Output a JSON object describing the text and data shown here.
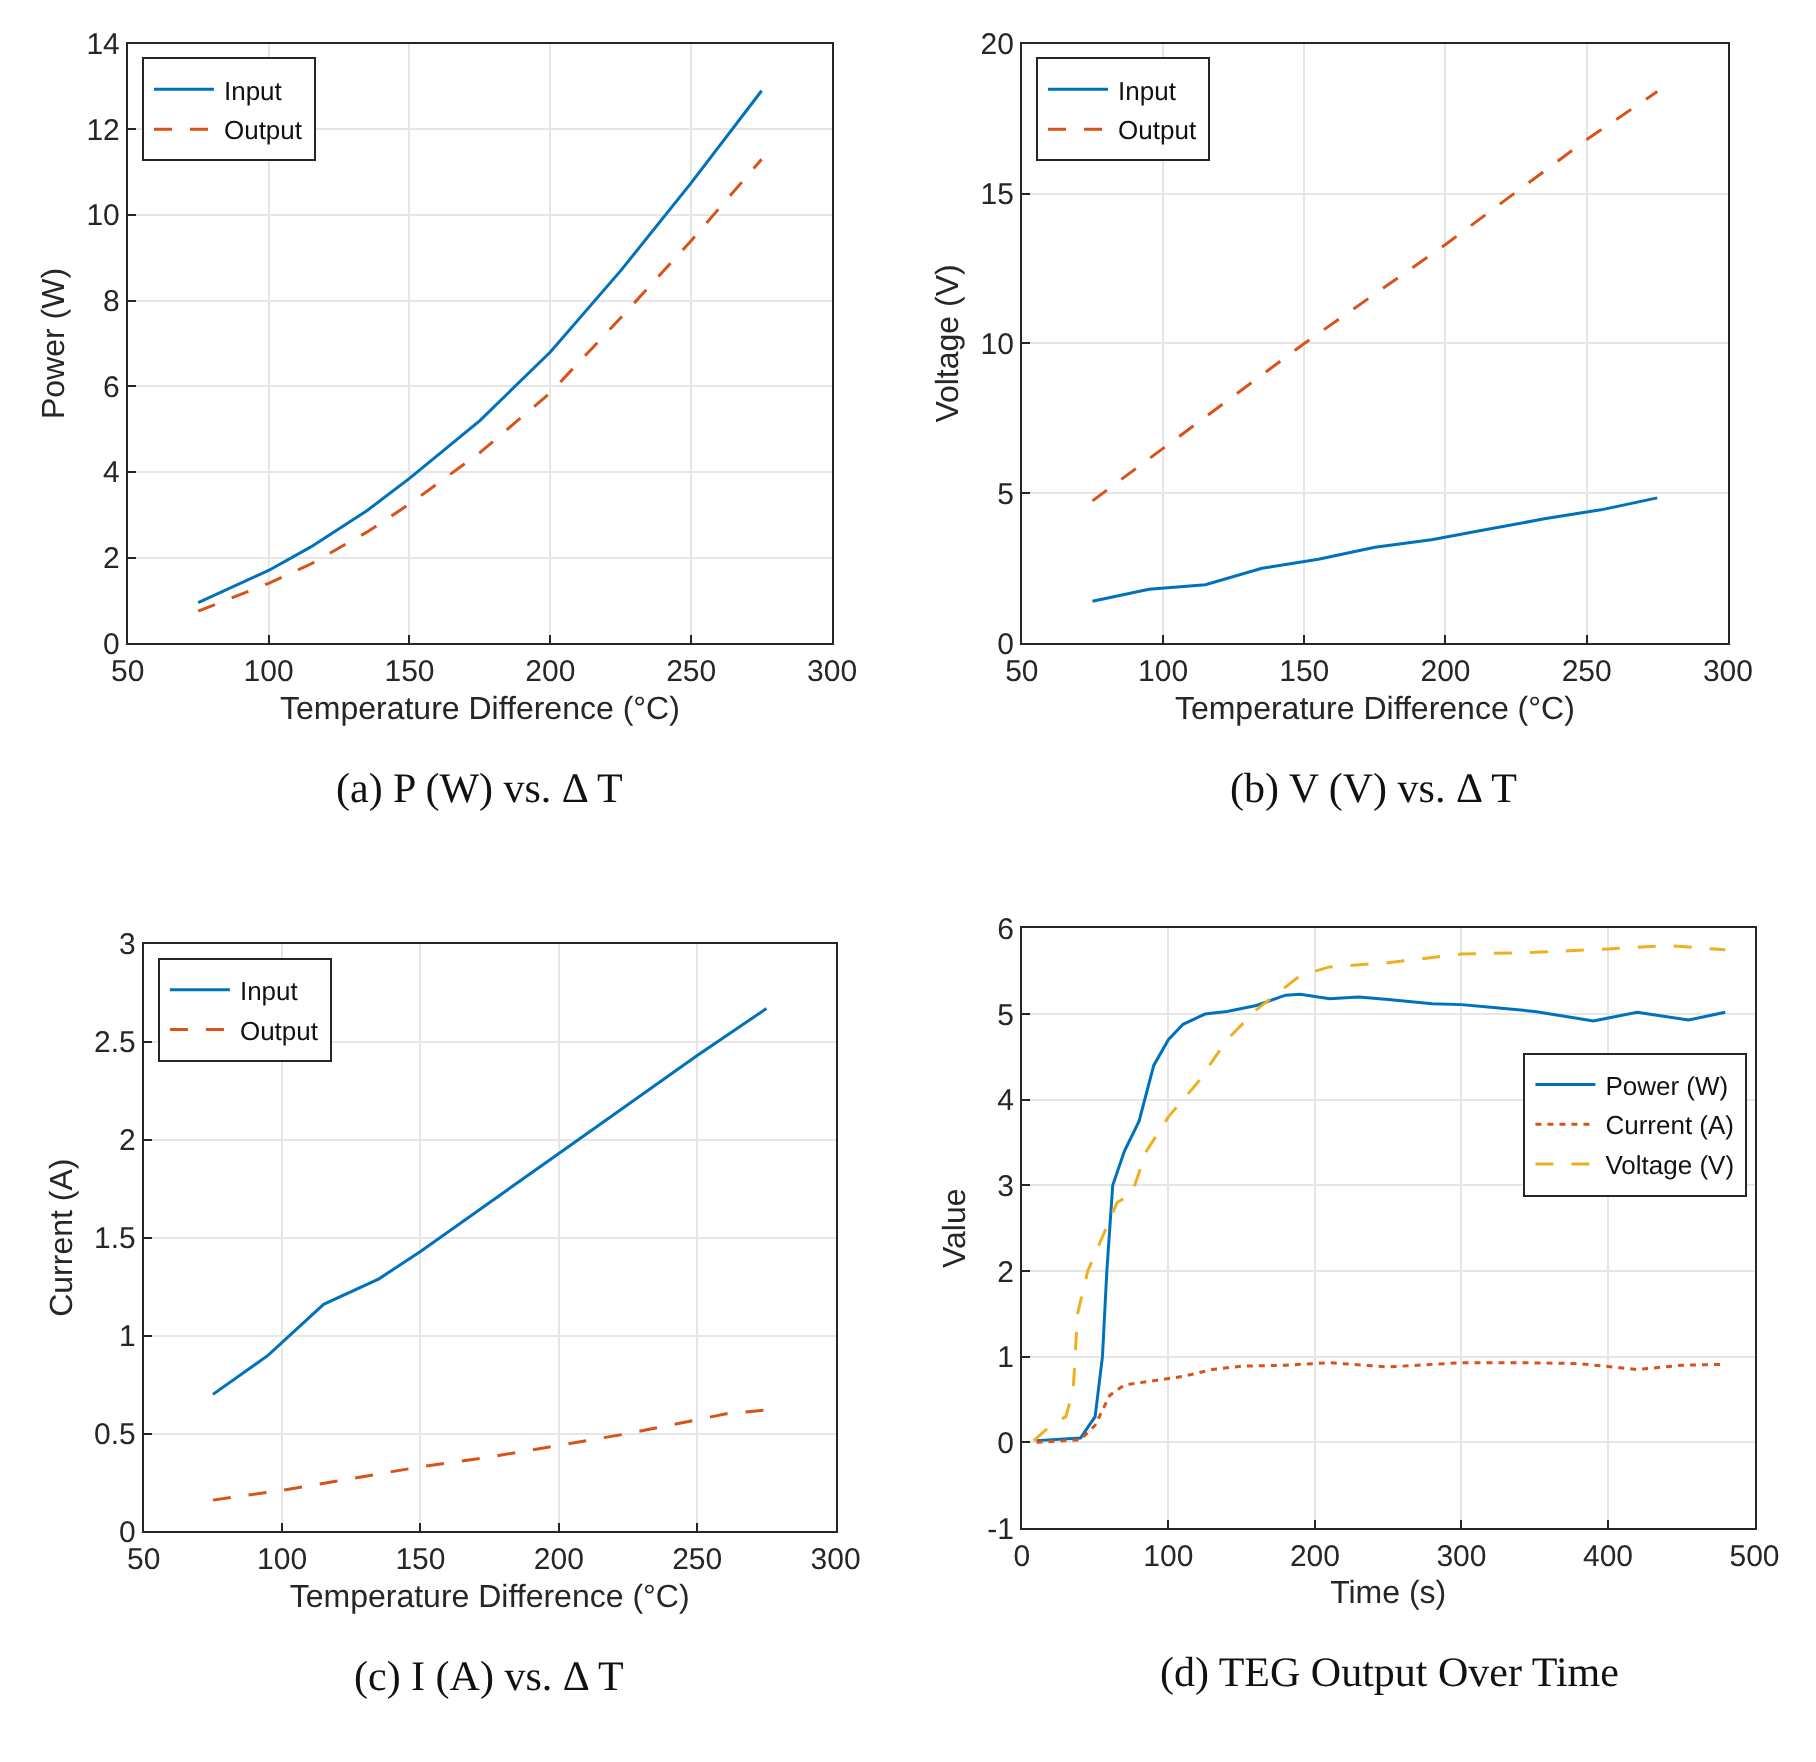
{
  "chart_data": [
    {
      "type": "line",
      "title": "(a) P (W) vs. Δ T",
      "xlabel": "Temperature Difference (°C)",
      "ylabel": "Power (W)",
      "xlim": [
        50,
        300
      ],
      "xticks": [
        50,
        100,
        150,
        200,
        250,
        300
      ],
      "ylim": [
        0,
        14
      ],
      "yticks": [
        0,
        2,
        4,
        6,
        8,
        10,
        12,
        14
      ],
      "grid": true,
      "legend": "top left",
      "series": [
        {
          "name": "Input",
          "color": "#0072bd",
          "line_style": "solid",
          "x": [
            75,
            100,
            115,
            135,
            150,
            175,
            200,
            225,
            250,
            275
          ],
          "values": [
            0.95,
            1.7,
            2.25,
            3.1,
            3.85,
            5.2,
            6.8,
            8.7,
            10.75,
            12.9
          ]
        },
        {
          "name": "Output",
          "color": "#d95319",
          "line_style": "dashed",
          "x": [
            75,
            100,
            115,
            135,
            150,
            175,
            200,
            225,
            250,
            275
          ],
          "values": [
            0.75,
            1.4,
            1.85,
            2.6,
            3.25,
            4.45,
            5.85,
            7.6,
            9.4,
            11.3
          ]
        }
      ]
    },
    {
      "type": "line",
      "title": "(b) V (V) vs. Δ T",
      "xlabel": "Temperature Difference (°C)",
      "ylabel": "Voltage (V)",
      "xlim": [
        50,
        300
      ],
      "xticks": [
        50,
        100,
        150,
        200,
        250,
        300
      ],
      "ylim": [
        0,
        20
      ],
      "yticks": [
        0,
        5,
        10,
        15,
        20
      ],
      "grid": true,
      "legend": "top left",
      "series": [
        {
          "name": "Input",
          "color": "#0072bd",
          "line_style": "solid",
          "x": [
            75,
            95,
            115,
            135,
            155,
            175,
            195,
            215,
            235,
            255,
            275
          ],
          "values": [
            1.4,
            1.8,
            1.95,
            2.5,
            2.8,
            3.2,
            3.45,
            3.8,
            4.15,
            4.45,
            4.85
          ]
        },
        {
          "name": "Output",
          "color": "#d95319",
          "line_style": "dashed",
          "x": [
            75,
            100,
            150,
            200,
            250,
            275
          ],
          "values": [
            4.75,
            6.5,
            10.0,
            13.3,
            16.8,
            18.4
          ]
        }
      ]
    },
    {
      "type": "line",
      "title": "(c) I (A) vs. Δ T",
      "xlabel": "Temperature Difference (°C)",
      "ylabel": "Current (A)",
      "xlim": [
        50,
        300
      ],
      "xticks": [
        50,
        100,
        150,
        200,
        250,
        300
      ],
      "ylim": [
        0,
        3
      ],
      "yticks": [
        0,
        0.5,
        1,
        1.5,
        2,
        2.5,
        3
      ],
      "grid": true,
      "legend": "top left",
      "series": [
        {
          "name": "Input",
          "color": "#0072bd",
          "line_style": "solid",
          "x": [
            75,
            95,
            115,
            135,
            150,
            175,
            200,
            225,
            250,
            275
          ],
          "values": [
            0.7,
            0.9,
            1.16,
            1.29,
            1.43,
            1.68,
            1.93,
            2.18,
            2.43,
            2.67
          ]
        },
        {
          "name": "Output",
          "color": "#d95319",
          "line_style": "dashed",
          "x": [
            75,
            100,
            125,
            150,
            175,
            200,
            225,
            250,
            260,
            275
          ],
          "values": [
            0.16,
            0.21,
            0.27,
            0.33,
            0.38,
            0.44,
            0.5,
            0.57,
            0.6,
            0.62
          ]
        }
      ]
    },
    {
      "type": "line",
      "title": "(d) TEG Output Over Time",
      "xlabel": "Time (s)",
      "ylabel": "Value",
      "xlim": [
        0,
        500
      ],
      "xticks": [
        0,
        100,
        200,
        300,
        400,
        500
      ],
      "ylim": [
        -1,
        6
      ],
      "yticks": [
        -1,
        0,
        1,
        2,
        3,
        4,
        5,
        6
      ],
      "grid": true,
      "legend": "right",
      "series": [
        {
          "name": "Power (W)",
          "color": "#0072bd",
          "line_style": "solid",
          "x": [
            10,
            40,
            50,
            55,
            58,
            62,
            70,
            80,
            90,
            100,
            110,
            125,
            140,
            160,
            180,
            190,
            210,
            230,
            250,
            280,
            300,
            320,
            350,
            390,
            420,
            455,
            480
          ],
          "values": [
            0.02,
            0.05,
            0.3,
            1.0,
            2.0,
            3.0,
            3.4,
            3.75,
            4.4,
            4.7,
            4.88,
            5.0,
            5.03,
            5.1,
            5.22,
            5.23,
            5.18,
            5.2,
            5.17,
            5.12,
            5.11,
            5.08,
            5.03,
            4.92,
            5.02,
            4.93,
            5.02
          ]
        },
        {
          "name": "Current (A)",
          "color": "#d95319",
          "line_style": "dotted",
          "x": [
            10,
            40,
            50,
            60,
            70,
            90,
            110,
            130,
            150,
            180,
            210,
            250,
            300,
            340,
            380,
            420,
            450,
            480
          ],
          "values": [
            0.0,
            0.03,
            0.2,
            0.55,
            0.67,
            0.72,
            0.77,
            0.85,
            0.89,
            0.9,
            0.93,
            0.88,
            0.93,
            0.93,
            0.92,
            0.85,
            0.9,
            0.91
          ]
        },
        {
          "name": "Voltage (V)",
          "color": "#edb120",
          "line_style": "dashed",
          "x": [
            8,
            20,
            30,
            35,
            38,
            45,
            55,
            65,
            75,
            85,
            100,
            120,
            140,
            160,
            175,
            190,
            210,
            250,
            300,
            350,
            400,
            440,
            480
          ],
          "values": [
            0.02,
            0.2,
            0.3,
            0.6,
            1.5,
            2.0,
            2.4,
            2.8,
            2.9,
            3.4,
            3.8,
            4.2,
            4.7,
            5.05,
            5.25,
            5.45,
            5.55,
            5.6,
            5.7,
            5.72,
            5.76,
            5.8,
            5.75
          ]
        }
      ]
    }
  ]
}
